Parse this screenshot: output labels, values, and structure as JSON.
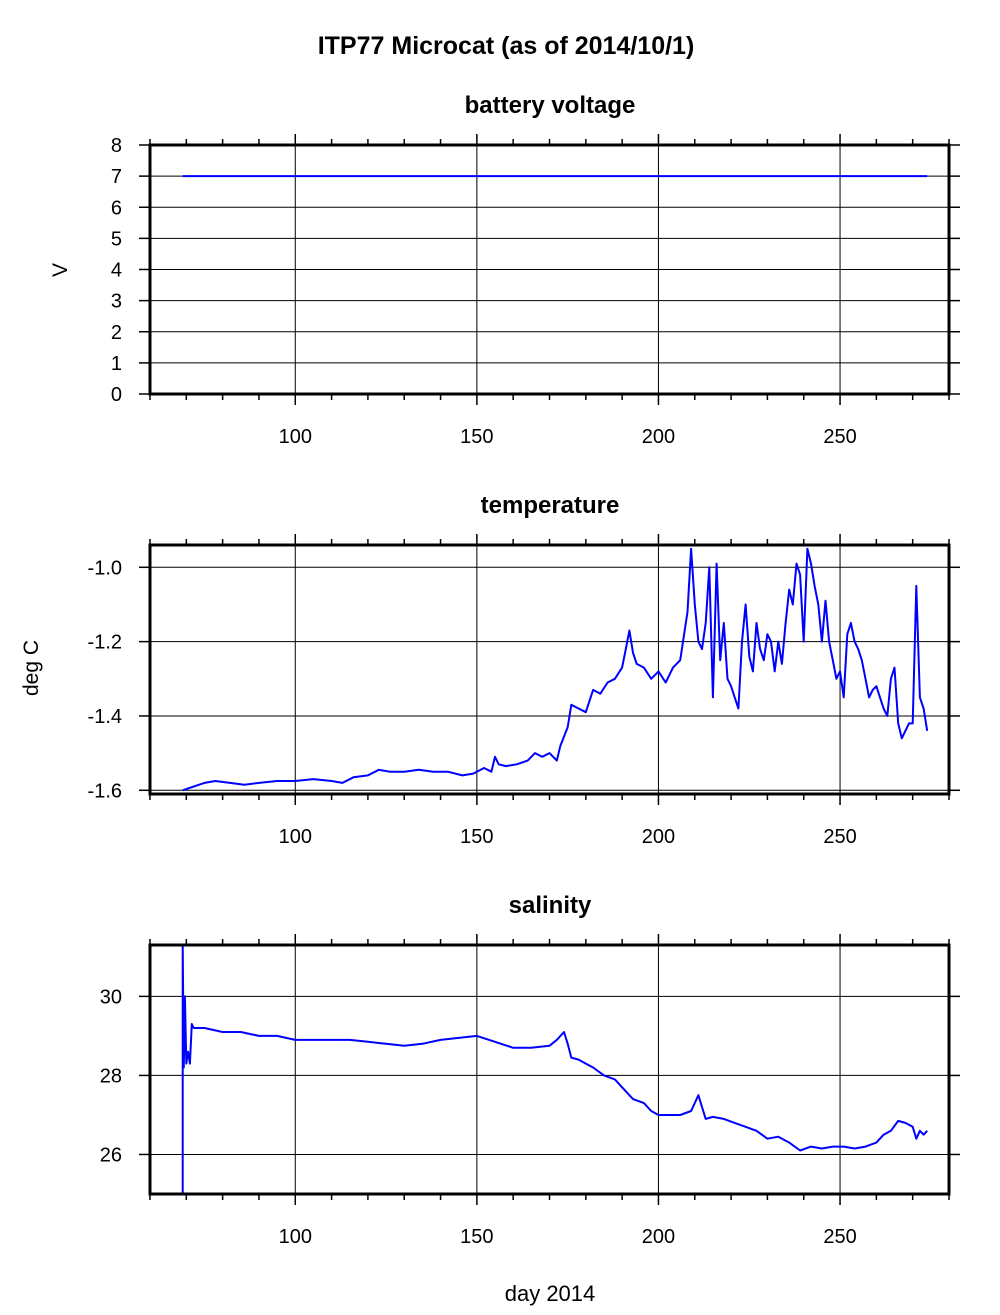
{
  "figure": {
    "title": "ITP77 Microcat  (as of 2014/10/1)",
    "xlabel": "day 2014"
  },
  "chart_data": [
    {
      "type": "line",
      "title": "battery voltage",
      "xlabel": "",
      "ylabel": "V",
      "xlim": [
        60,
        280
      ],
      "ylim": [
        0,
        8
      ],
      "x_ticks": [
        100,
        150,
        200,
        250
      ],
      "y_ticks": [
        0,
        1,
        2,
        3,
        4,
        5,
        6,
        7,
        8
      ],
      "y_tick_labels": [
        "0",
        "1",
        "2",
        "3",
        "4",
        "5",
        "6",
        "7",
        "8"
      ],
      "grid": true,
      "line_color": "#0000ff",
      "series": [
        {
          "x": [
            69,
            274
          ],
          "y": [
            7.0,
            7.0
          ]
        }
      ]
    },
    {
      "type": "line",
      "title": "temperature",
      "xlabel": "",
      "ylabel": "deg C",
      "xlim": [
        60,
        280
      ],
      "ylim": [
        -1.61,
        -0.94
      ],
      "x_ticks": [
        100,
        150,
        200,
        250
      ],
      "y_ticks": [
        -1.6,
        -1.4,
        -1.2,
        -1.0
      ],
      "y_tick_labels": [
        "-1.6",
        "-1.4",
        "-1.2",
        "-1.0"
      ],
      "grid": true,
      "line_color": "#0000ff",
      "series": [
        {
          "x": [
            69,
            72,
            75,
            78,
            82,
            86,
            90,
            95,
            100,
            105,
            110,
            113,
            116,
            120,
            123,
            126,
            130,
            134,
            138,
            142,
            146,
            149,
            152,
            154,
            155,
            156,
            158,
            161,
            164,
            166,
            168,
            170,
            172,
            173,
            175,
            176,
            178,
            180,
            182,
            184,
            186,
            188,
            190,
            191,
            192,
            193,
            194,
            196,
            198,
            200,
            202,
            204,
            206,
            208,
            209,
            210,
            211,
            212,
            213,
            214,
            215,
            216,
            217,
            218,
            219,
            220,
            221,
            222,
            223,
            224,
            225,
            226,
            227,
            228,
            229,
            230,
            231,
            232,
            233,
            234,
            235,
            236,
            237,
            238,
            239,
            240,
            241,
            242,
            243,
            244,
            245,
            246,
            247,
            248,
            249,
            250,
            251,
            252,
            253,
            254,
            255,
            256,
            257,
            258,
            259,
            260,
            261,
            262,
            263,
            264,
            265,
            266,
            267,
            268,
            269,
            270,
            271,
            272,
            273,
            274
          ],
          "y": [
            -1.6,
            -1.59,
            -1.58,
            -1.575,
            -1.58,
            -1.585,
            -1.58,
            -1.575,
            -1.575,
            -1.57,
            -1.575,
            -1.58,
            -1.565,
            -1.56,
            -1.545,
            -1.55,
            -1.55,
            -1.545,
            -1.55,
            -1.55,
            -1.56,
            -1.555,
            -1.54,
            -1.55,
            -1.51,
            -1.53,
            -1.535,
            -1.53,
            -1.52,
            -1.5,
            -1.51,
            -1.5,
            -1.52,
            -1.48,
            -1.43,
            -1.37,
            -1.38,
            -1.39,
            -1.33,
            -1.34,
            -1.31,
            -1.3,
            -1.27,
            -1.22,
            -1.17,
            -1.23,
            -1.26,
            -1.27,
            -1.3,
            -1.28,
            -1.31,
            -1.27,
            -1.25,
            -1.12,
            -0.95,
            -1.1,
            -1.2,
            -1.22,
            -1.15,
            -1.0,
            -1.35,
            -0.99,
            -1.25,
            -1.15,
            -1.3,
            -1.32,
            -1.35,
            -1.38,
            -1.2,
            -1.1,
            -1.24,
            -1.28,
            -1.15,
            -1.22,
            -1.25,
            -1.18,
            -1.2,
            -1.28,
            -1.2,
            -1.26,
            -1.15,
            -1.06,
            -1.1,
            -0.99,
            -1.02,
            -1.2,
            -0.95,
            -0.99,
            -1.05,
            -1.1,
            -1.2,
            -1.09,
            -1.2,
            -1.25,
            -1.3,
            -1.28,
            -1.35,
            -1.18,
            -1.15,
            -1.2,
            -1.22,
            -1.25,
            -1.3,
            -1.35,
            -1.33,
            -1.32,
            -1.35,
            -1.38,
            -1.4,
            -1.3,
            -1.27,
            -1.42,
            -1.46,
            -1.44,
            -1.42,
            -1.42,
            -1.05,
            -1.35,
            -1.38,
            -1.44
          ]
        }
      ]
    },
    {
      "type": "line",
      "title": "salinity",
      "xlabel": "",
      "ylabel": "",
      "xlim": [
        60,
        280
      ],
      "ylim": [
        25.0,
        31.3
      ],
      "x_ticks": [
        100,
        150,
        200,
        250
      ],
      "y_ticks": [
        26,
        28,
        30
      ],
      "y_tick_labels": [
        "26",
        "28",
        "30"
      ],
      "grid": true,
      "line_color": "#0000ff",
      "series": [
        {
          "x": [
            69,
            69,
            69.3,
            69.6,
            70,
            70.5,
            71,
            71.5,
            72,
            75,
            80,
            85,
            90,
            95,
            100,
            105,
            110,
            115,
            120,
            125,
            130,
            135,
            140,
            145,
            150,
            155,
            160,
            165,
            170,
            172,
            174,
            175,
            176,
            178,
            180,
            182,
            185,
            188,
            190,
            193,
            196,
            198,
            200,
            203,
            206,
            209,
            211,
            212,
            213,
            215,
            218,
            221,
            224,
            227,
            230,
            233,
            236,
            239,
            242,
            245,
            248,
            251,
            254,
            257,
            260,
            262,
            264,
            266,
            268,
            270,
            271,
            272,
            273,
            274
          ],
          "y": [
            25.0,
            31.3,
            28.2,
            30.0,
            28.3,
            28.6,
            28.3,
            29.3,
            29.2,
            29.2,
            29.1,
            29.1,
            29.0,
            29.0,
            28.9,
            28.9,
            28.9,
            28.9,
            28.85,
            28.8,
            28.75,
            28.8,
            28.9,
            28.95,
            29.0,
            28.85,
            28.7,
            28.7,
            28.75,
            28.9,
            29.1,
            28.8,
            28.45,
            28.4,
            28.3,
            28.2,
            28.0,
            27.9,
            27.7,
            27.4,
            27.3,
            27.1,
            27.0,
            27.0,
            27.0,
            27.1,
            27.5,
            27.2,
            26.9,
            26.95,
            26.9,
            26.8,
            26.7,
            26.6,
            26.4,
            26.45,
            26.3,
            26.1,
            26.2,
            26.15,
            26.2,
            26.2,
            26.15,
            26.2,
            26.3,
            26.5,
            26.6,
            26.85,
            26.8,
            26.7,
            26.4,
            26.6,
            26.5,
            26.6
          ]
        }
      ]
    }
  ]
}
